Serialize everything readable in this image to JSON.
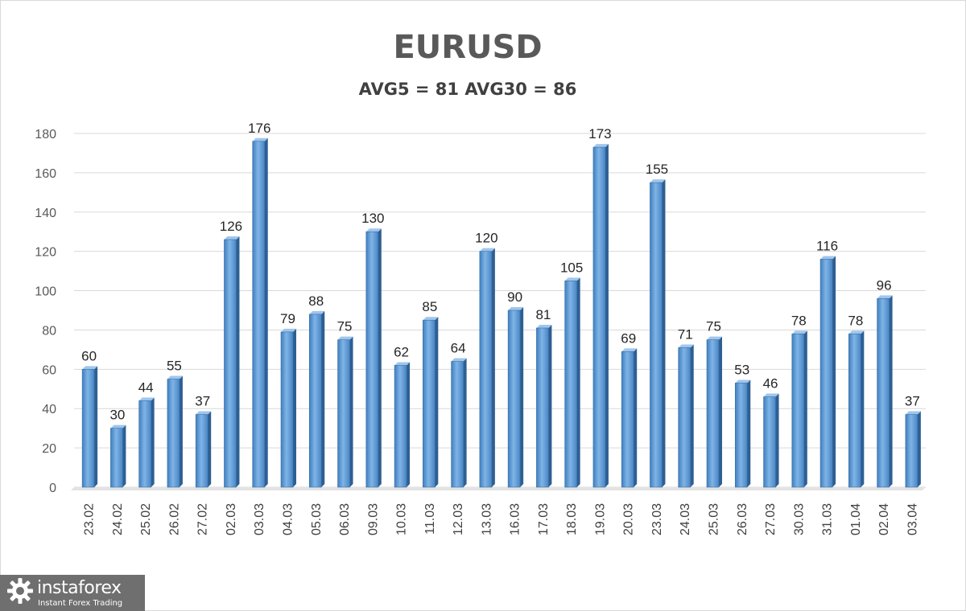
{
  "chart_data": {
    "type": "bar",
    "title": "EURUSD",
    "subtitle": "AVG5 = 81 AVG30 = 86",
    "categories": [
      "23.02",
      "24.02",
      "25.02",
      "26.02",
      "27.02",
      "02.03",
      "03.03",
      "04.03",
      "05.03",
      "06.03",
      "09.03",
      "10.03",
      "11.03",
      "12.03",
      "13.03",
      "16.03",
      "17.03",
      "18.03",
      "19.03",
      "20.03",
      "23.03",
      "24.03",
      "25.03",
      "26.03",
      "27.03",
      "30.03",
      "31.03",
      "01.04",
      "02.04",
      "03.04"
    ],
    "values": [
      60,
      30,
      44,
      55,
      37,
      126,
      176,
      79,
      88,
      75,
      130,
      62,
      85,
      64,
      120,
      90,
      81,
      105,
      173,
      69,
      155,
      71,
      75,
      53,
      46,
      78,
      116,
      78,
      96,
      37
    ],
    "ylim": [
      0,
      180
    ],
    "yticks": [
      0,
      20,
      40,
      60,
      80,
      100,
      120,
      140,
      160,
      180
    ],
    "grid": true,
    "bar_color": "#5b9bd5"
  },
  "logo": {
    "name": "instaforex",
    "tagline": "Instant Forex Trading"
  }
}
